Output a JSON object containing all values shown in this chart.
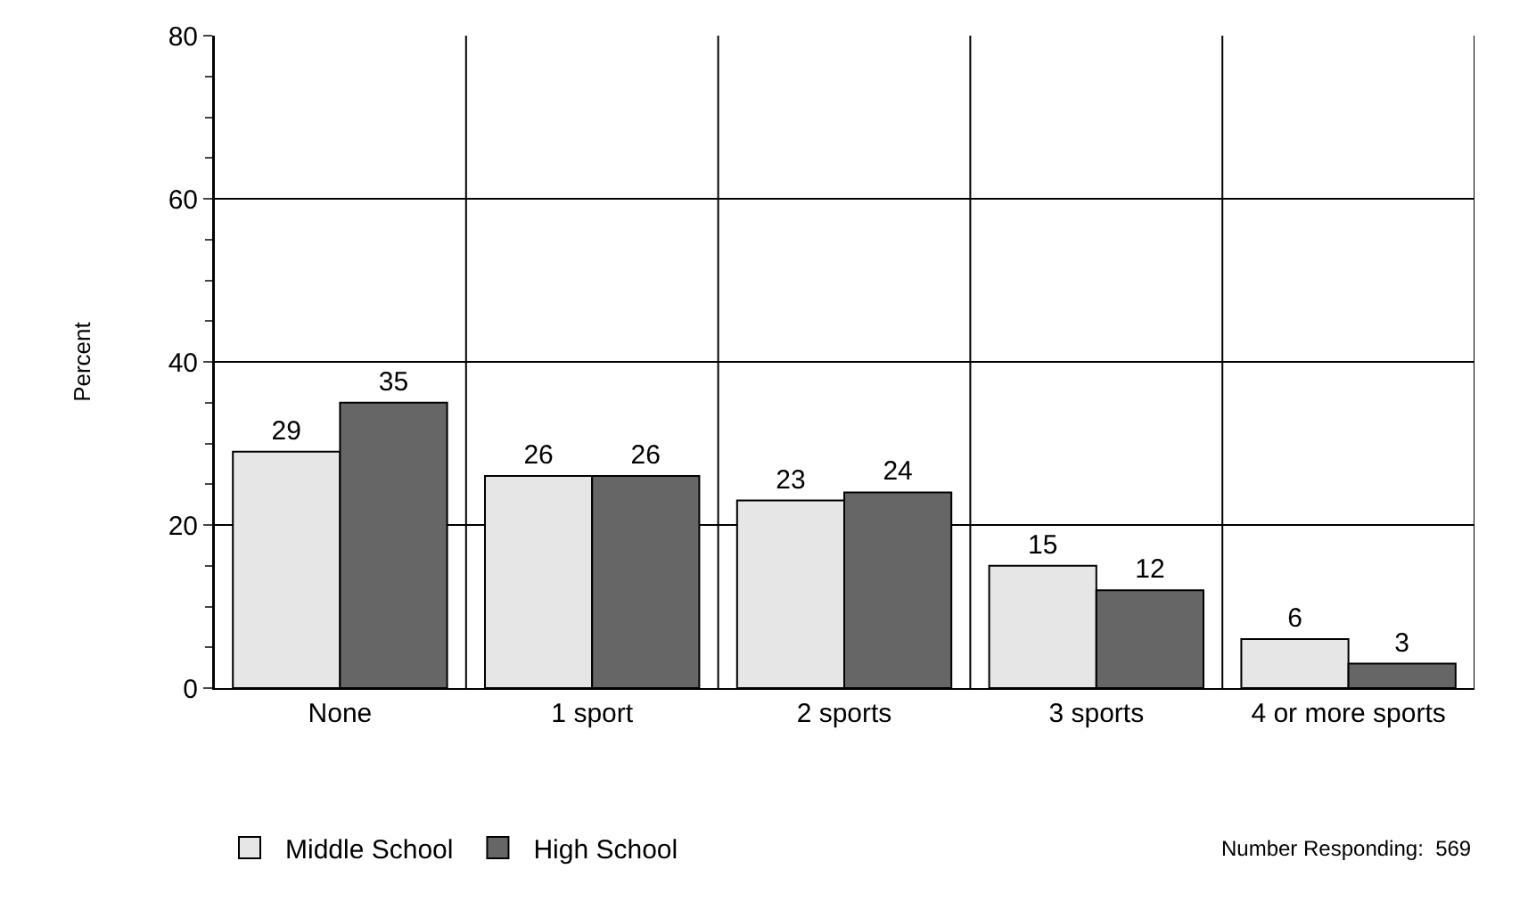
{
  "chart_data": {
    "type": "bar",
    "ylabel": "Percent",
    "categories": [
      "None",
      "1 sport",
      "2 sports",
      "3 sports",
      "4 or more sports"
    ],
    "series": [
      {
        "name": "Middle School",
        "color": "#e6e6e6",
        "values": [
          29,
          26,
          23,
          15,
          6
        ]
      },
      {
        "name": "High School",
        "color": "#666666",
        "values": [
          35,
          26,
          24,
          12,
          3
        ]
      }
    ],
    "ylim": [
      0,
      80
    ],
    "yticks": [
      0,
      20,
      40,
      60,
      80
    ],
    "grid": true,
    "legend": "bottom left",
    "data_labels": true,
    "annotations": [
      "Number Responding:  569"
    ]
  }
}
